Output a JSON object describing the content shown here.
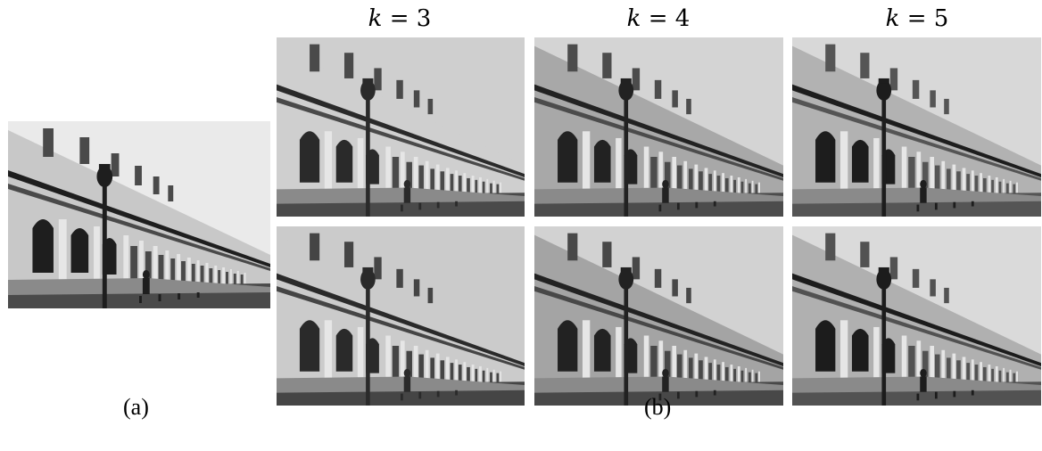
{
  "columns": [
    {
      "var": "k",
      "op": " = ",
      "value": "3"
    },
    {
      "var": "k",
      "op": " = ",
      "value": "4"
    },
    {
      "var": "k",
      "op": " = ",
      "value": "5"
    }
  ],
  "captions": {
    "a": "(a)",
    "b": "(b)"
  },
  "image_subject": "grayscale photo of a colonnaded building facade with a street lamp and a walking pedestrian",
  "panels": [
    {
      "id": "original",
      "levels": "continuous"
    },
    {
      "id": "r1-k3",
      "levels": 3
    },
    {
      "id": "r1-k4",
      "levels": 4
    },
    {
      "id": "r1-k5",
      "levels": 5
    },
    {
      "id": "r2-k3",
      "levels": 3
    },
    {
      "id": "r2-k4",
      "levels": 4
    },
    {
      "id": "r2-k5",
      "levels": 5
    }
  ],
  "colors": {
    "sky": "#d9d9d9",
    "facade": "#bdbdbd",
    "shadow": "#3a3a3a",
    "dark": "#1a1a1a"
  }
}
